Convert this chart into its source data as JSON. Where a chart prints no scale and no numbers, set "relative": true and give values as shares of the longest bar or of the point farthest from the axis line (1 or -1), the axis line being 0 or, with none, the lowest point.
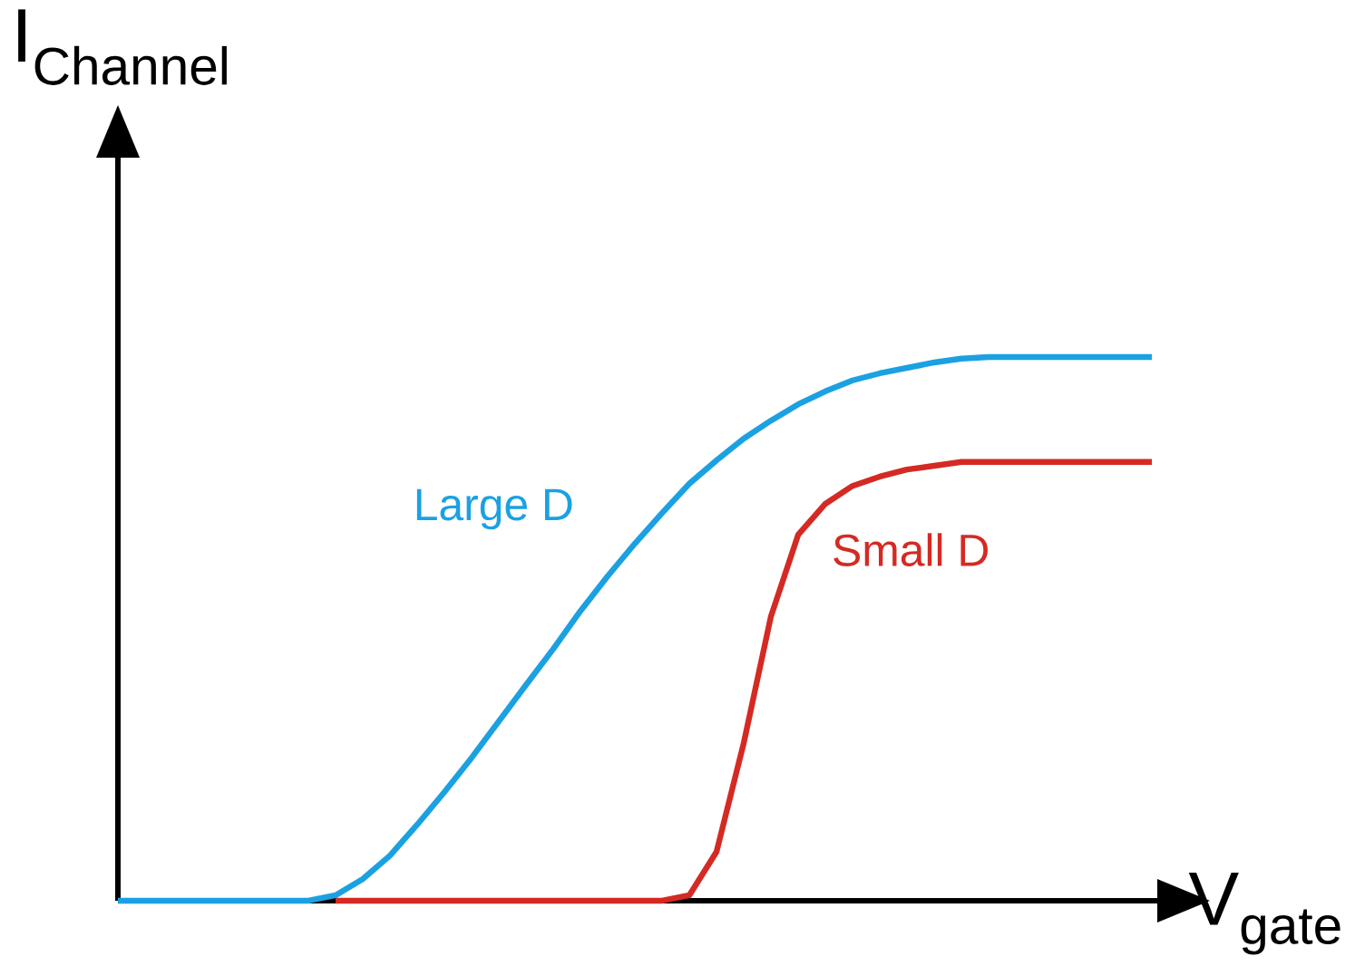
{
  "chart_data": {
    "type": "line",
    "relative": true,
    "xlabel": "V$_{gate}$",
    "ylabel": "I$_{Channel}$",
    "marker": "none",
    "line_style": "solid",
    "legend": false,
    "categories": [
      null,
      null,
      null,
      null,
      null,
      null,
      null,
      null,
      null,
      null,
      null,
      null,
      null,
      null,
      null,
      null,
      null,
      null,
      null,
      null,
      null,
      null,
      null,
      null,
      null,
      null,
      null,
      null,
      null,
      null,
      null,
      null,
      null,
      null,
      null,
      null,
      null,
      null,
      null
    ],
    "series": [
      {
        "name": "Large D",
        "color": "#1ba1e2",
        "values": [
          0,
          0,
          0,
          0,
          0,
          0,
          0,
          0,
          0.01,
          0.04,
          0.083,
          0.14,
          0.2,
          0.263,
          0.33,
          0.397,
          0.463,
          0.533,
          0.597,
          0.657,
          0.713,
          0.767,
          0.81,
          0.85,
          0.883,
          0.913,
          0.937,
          0.957,
          0.97,
          0.98,
          0.99,
          0.997,
          1,
          1,
          1,
          1,
          1,
          1,
          1
        ]
      },
      {
        "name": "Small D",
        "color": "#d42a23",
        "values": [
          null,
          null,
          null,
          null,
          null,
          null,
          null,
          null,
          0,
          0,
          0,
          0,
          0,
          0,
          0,
          0,
          0,
          0,
          0,
          0,
          0,
          0.01,
          0.09,
          0.29,
          0.523,
          0.673,
          0.73,
          0.763,
          0.78,
          0.793,
          0.8,
          0.807,
          0.807,
          0.807,
          0.807,
          0.807,
          0.807,
          0.807,
          0.807
        ]
      }
    ]
  }
}
